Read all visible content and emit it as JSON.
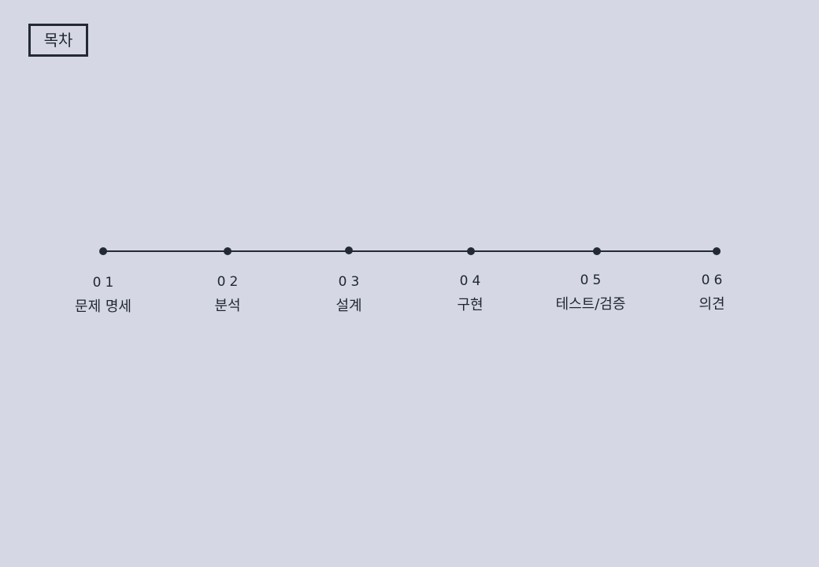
{
  "title": "목차",
  "colors": {
    "background": "#d5d8e4",
    "line": "#232a35",
    "text": "#1f2633"
  },
  "steps": [
    {
      "num": "01",
      "label": "문제 명세"
    },
    {
      "num": "02",
      "label": "분석"
    },
    {
      "num": "03",
      "label": "설계"
    },
    {
      "num": "04",
      "label": "구현"
    },
    {
      "num": "05",
      "label": "테스트/검증"
    },
    {
      "num": "06",
      "label": "의견"
    }
  ]
}
